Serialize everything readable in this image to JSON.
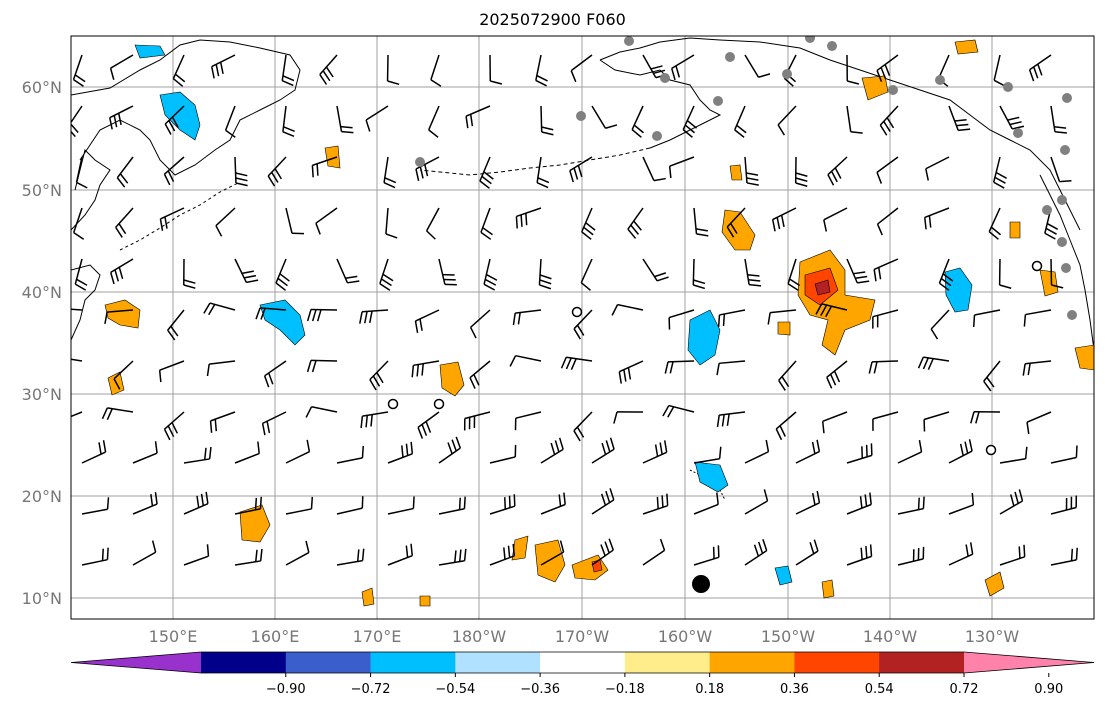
{
  "title": "2025072900 F060",
  "map": {
    "lat_labels": [
      "60°N",
      "50°N",
      "40°N",
      "30°N",
      "20°N",
      "10°N"
    ],
    "lon_labels": [
      "150°E",
      "160°E",
      "170°E",
      "180°W",
      "170°W",
      "160°W",
      "150°W",
      "140°W",
      "130°W"
    ],
    "lon_range": [
      "140°E",
      "120°W"
    ],
    "lat_range": [
      "8°N",
      "65°N"
    ],
    "gridlines": true,
    "overlay": "wind barbs, coastlines, shaded anomaly contours, station dots"
  },
  "colorbar": {
    "ticks": [
      "−0.90",
      "−0.72",
      "−0.54",
      "−0.36",
      "−0.18",
      "0.18",
      "0.36",
      "0.54",
      "0.72",
      "0.90"
    ],
    "colors": [
      "#9932cc",
      "#00008b",
      "#3a5fcd",
      "#00bfff",
      "#b0e2ff",
      "#ffffff",
      "#ffec8b",
      "#ffa500",
      "#ff4500",
      "#b22222",
      "#ff82ab"
    ]
  },
  "colors": {
    "gridline": "#a0a0a0",
    "barb": "#000000",
    "station": "#808080",
    "positive": "#ffa500",
    "negative": "#00bfff"
  }
}
